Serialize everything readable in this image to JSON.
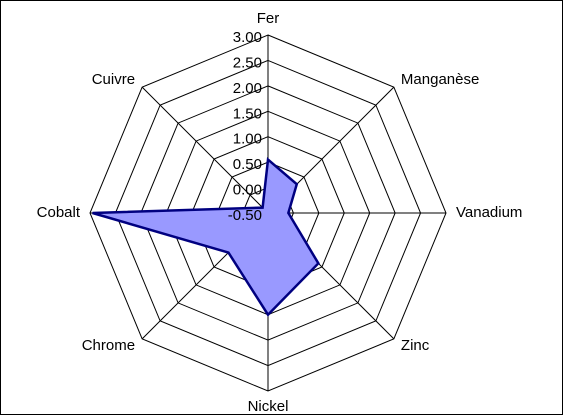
{
  "chart_data": {
    "type": "radar",
    "categories": [
      "Fer",
      "Manganèse",
      "Vanadium",
      "Zinc",
      "Nickel",
      "Chrome",
      "Cobalt",
      "Cuivre"
    ],
    "values": [
      0.55,
      0.3,
      -0.1,
      0.9,
      1.5,
      0.6,
      2.95,
      -0.35
    ],
    "color": "#9999ff",
    "ylim": [
      -0.5,
      3
    ],
    "yticks": [
      {
        "value": -0.5,
        "label": "-0.50"
      },
      {
        "value": 0,
        "label": "0.00"
      },
      {
        "value": 0.5,
        "label": "0.50"
      },
      {
        "value": 1,
        "label": "1.00"
      },
      {
        "value": 1.5,
        "label": "1.50"
      },
      {
        "value": 2,
        "label": "2.00"
      },
      {
        "value": 2.5,
        "label": "2.50"
      },
      {
        "value": 3,
        "label": "3.00"
      }
    ],
    "grid": true
  }
}
